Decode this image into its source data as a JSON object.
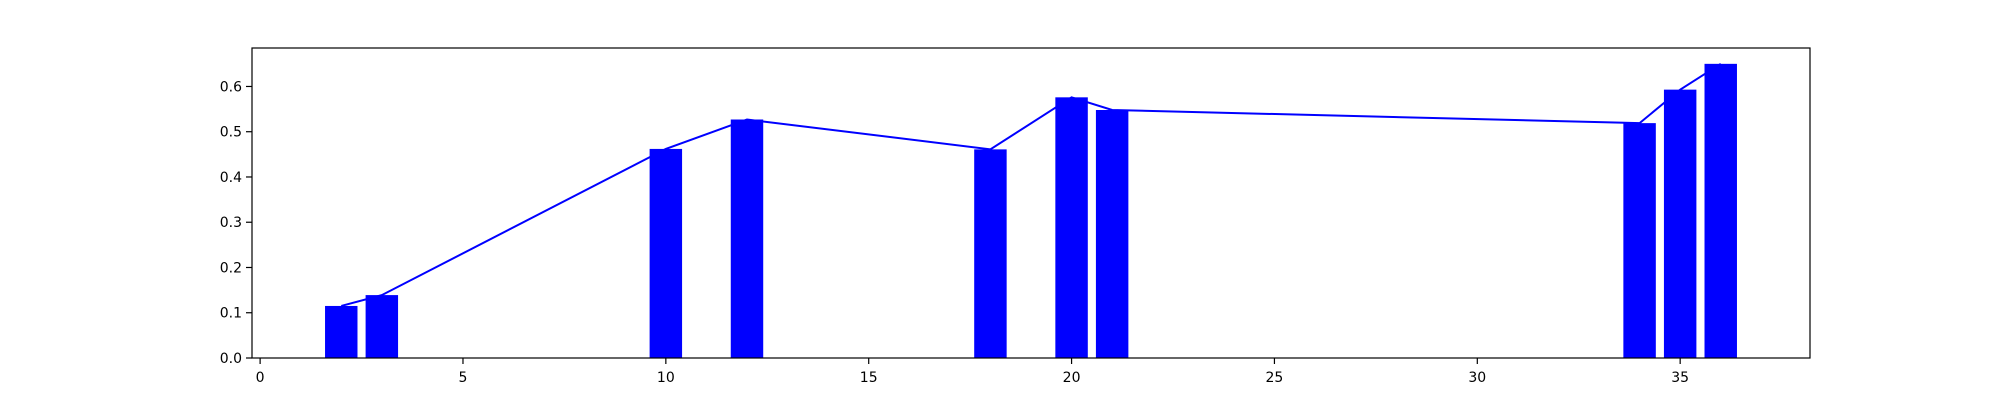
{
  "chart_data": {
    "type": "bar",
    "title": "",
    "xlabel": "",
    "ylabel": "",
    "xlim": [
      -0.2,
      38.2
    ],
    "ylim": [
      0,
      0.685
    ],
    "x_ticks": [
      0,
      5,
      10,
      15,
      20,
      25,
      30,
      35
    ],
    "x_tick_labels": [
      "0",
      "5",
      "10",
      "15",
      "20",
      "25",
      "30",
      "35"
    ],
    "y_ticks": [
      0.0,
      0.1,
      0.2,
      0.3,
      0.4,
      0.5,
      0.6
    ],
    "y_tick_labels": [
      "0.0",
      "0.1",
      "0.2",
      "0.3",
      "0.4",
      "0.5",
      "0.6"
    ],
    "grid": false,
    "bar_width": 0.8,
    "x": [
      2,
      3,
      10,
      12,
      18,
      20,
      21,
      34,
      35,
      36
    ],
    "values": [
      0.115,
      0.139,
      0.462,
      0.527,
      0.461,
      0.576,
      0.548,
      0.519,
      0.593,
      0.65
    ],
    "overlay_line": true,
    "color": "#0000ff"
  }
}
